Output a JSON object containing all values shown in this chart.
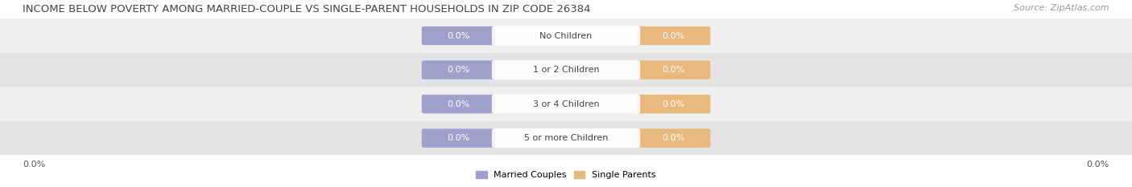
{
  "title": "INCOME BELOW POVERTY AMONG MARRIED-COUPLE VS SINGLE-PARENT HOUSEHOLDS IN ZIP CODE 26384",
  "source": "Source: ZipAtlas.com",
  "categories": [
    "No Children",
    "1 or 2 Children",
    "3 or 4 Children",
    "5 or more Children"
  ],
  "married_values": [
    0.0,
    0.0,
    0.0,
    0.0
  ],
  "single_values": [
    0.0,
    0.0,
    0.0,
    0.0
  ],
  "married_color": "#a0a0cc",
  "single_color": "#e8b87d",
  "married_label": "Married Couples",
  "single_label": "Single Parents",
  "row_bg_colors": [
    "#efefef",
    "#e4e4e4"
  ],
  "axis_label_left": "0.0%",
  "axis_label_right": "0.0%",
  "title_fontsize": 9.5,
  "source_fontsize": 8,
  "label_fontsize": 8,
  "category_fontsize": 8,
  "figure_bg": "#ffffff",
  "text_color": "#555555",
  "title_color": "#444444",
  "source_color": "#999999"
}
